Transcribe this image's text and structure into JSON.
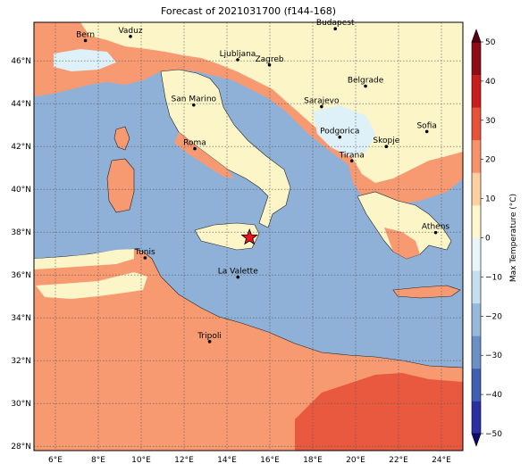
{
  "title": "Forecast of 2021031700 (f144-168)",
  "map": {
    "lon_ticks": [
      "6°E",
      "8°E",
      "10°E",
      "12°E",
      "14°E",
      "16°E",
      "18°E",
      "20°E",
      "22°E",
      "24°E"
    ],
    "lat_ticks": [
      "46°N",
      "44°N",
      "42°N",
      "40°N",
      "38°N",
      "36°N",
      "34°N",
      "32°N",
      "30°N",
      "28°N"
    ],
    "lon_range": [
      5,
      25
    ],
    "lat_range": [
      27.8,
      47.8
    ],
    "cities": [
      {
        "name": "Bern",
        "lon": 7.4,
        "lat": 46.95
      },
      {
        "name": "Vaduz",
        "lon": 9.5,
        "lat": 47.14
      },
      {
        "name": "Budapest",
        "lon": 19.05,
        "lat": 47.5
      },
      {
        "name": "Ljubljana",
        "lon": 14.5,
        "lat": 46.05
      },
      {
        "name": "Zagreb",
        "lon": 15.98,
        "lat": 45.81
      },
      {
        "name": "Belgrade",
        "lon": 20.46,
        "lat": 44.82
      },
      {
        "name": "San Marino",
        "lon": 12.45,
        "lat": 43.94
      },
      {
        "name": "Sarajevo",
        "lon": 18.41,
        "lat": 43.86
      },
      {
        "name": "Sofia",
        "lon": 23.32,
        "lat": 42.7
      },
      {
        "name": "Podgorica",
        "lon": 19.26,
        "lat": 42.44
      },
      {
        "name": "Skopje",
        "lon": 21.43,
        "lat": 42.0
      },
      {
        "name": "Roma",
        "lon": 12.5,
        "lat": 41.9
      },
      {
        "name": "Tirana",
        "lon": 19.82,
        "lat": 41.33
      },
      {
        "name": "Athens",
        "lon": 23.73,
        "lat": 37.98
      },
      {
        "name": "Tunis",
        "lon": 10.18,
        "lat": 36.8
      },
      {
        "name": "La Valette",
        "lon": 14.51,
        "lat": 35.9
      },
      {
        "name": "Tripoli",
        "lon": 13.19,
        "lat": 32.89
      }
    ],
    "marker": {
      "type": "star",
      "lon": 15.05,
      "lat": 37.75,
      "color": "#e8141c"
    }
  },
  "colorbar": {
    "label": "Max Temperature (°C)",
    "ticks": [
      "50",
      "40",
      "30",
      "20",
      "10",
      "0",
      "−10",
      "−20",
      "−30",
      "−40",
      "−50"
    ],
    "colors": [
      "#0a0a70",
      "#2b2fa0",
      "#3f5fb0",
      "#6c90c6",
      "#98b9db",
      "#c5def0",
      "#e8f6fb",
      "#fdf7cf",
      "#fcd0a0",
      "#f6936b",
      "#e5533a",
      "#c81e1e",
      "#8e0b18",
      "#5c0010"
    ]
  },
  "field_colors": {
    "sea": "#8fb1d8",
    "cool_land": "#fbf5c8",
    "warm_land": "#f79a72",
    "hot_land": "#e9593f",
    "cold": "#dff1f8"
  }
}
